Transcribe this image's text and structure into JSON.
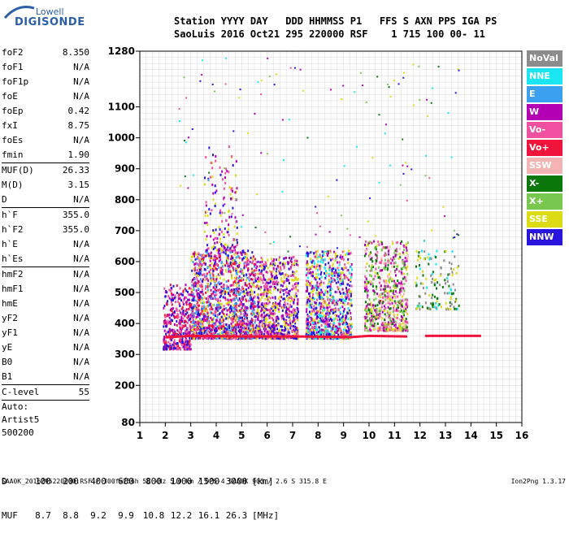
{
  "logo": {
    "line1": "Lowell",
    "line2": "DIGISONDE"
  },
  "header": {
    "line1": "Station YYYY DAY   DDD HHMMSS P1   FFS S AXN PPS IGA PS",
    "line2": "SaoLuis 2016 Oct21 295 220000 RSF    1 715 100 00- 11"
  },
  "params": [
    {
      "name": "foF2",
      "value": "8.350"
    },
    {
      "name": "foF1",
      "value": "N/A"
    },
    {
      "name": "foF1p",
      "value": "N/A"
    },
    {
      "name": "foE",
      "value": "N/A"
    },
    {
      "name": "foEp",
      "value": "0.42"
    },
    {
      "name": "fxI",
      "value": "8.75"
    },
    {
      "name": "foEs",
      "value": "N/A"
    },
    {
      "name": "fmin",
      "value": "1.90"
    },
    {
      "name": "MUF(D)",
      "value": "26.33"
    },
    {
      "name": "M(D)",
      "value": "3.15"
    },
    {
      "name": "D",
      "value": "N/A"
    },
    {
      "name": "h`F",
      "value": "355.0"
    },
    {
      "name": "h`F2",
      "value": "355.0"
    },
    {
      "name": "h`E",
      "value": "N/A"
    },
    {
      "name": "h`Es",
      "value": "N/A"
    },
    {
      "name": "hmF2",
      "value": "N/A"
    },
    {
      "name": "hmF1",
      "value": "N/A"
    },
    {
      "name": "hmE",
      "value": "N/A"
    },
    {
      "name": "yF2",
      "value": "N/A"
    },
    {
      "name": "yF1",
      "value": "N/A"
    },
    {
      "name": "yE",
      "value": "N/A"
    },
    {
      "name": "B0",
      "value": "N/A"
    },
    {
      "name": "B1",
      "value": "N/A"
    },
    {
      "name": "C-level",
      "value": "55"
    }
  ],
  "auto": {
    "label": "Auto:",
    "artist": "Artist5",
    "code": "500200"
  },
  "legend": [
    {
      "label": "NoVal",
      "color": "#8c8c8c"
    },
    {
      "label": "NNE",
      "color": "#19e6f0"
    },
    {
      "label": "E",
      "color": "#3ca0f0"
    },
    {
      "label": "W",
      "color": "#b400b4"
    },
    {
      "label": "Vo-",
      "color": "#f050a0"
    },
    {
      "label": "Vo+",
      "color": "#f0143c"
    },
    {
      "label": "SSW",
      "color": "#f5b4b4"
    },
    {
      "label": "X-",
      "color": "#0a780a"
    },
    {
      "label": "X+",
      "color": "#78c850"
    },
    {
      "label": "SSE",
      "color": "#dcdc14"
    },
    {
      "label": "NNW",
      "color": "#2814dc"
    }
  ],
  "chart_data": {
    "type": "scatter",
    "xlim": [
      1,
      16
    ],
    "ylim": [
      80,
      1280
    ],
    "x_ticks": [
      1,
      2,
      3,
      4,
      5,
      6,
      7,
      8,
      9,
      10,
      11,
      12,
      13,
      14,
      15,
      16
    ],
    "y_ticks": [
      80,
      200,
      300,
      400,
      500,
      600,
      700,
      800,
      900,
      1000,
      1100,
      1280
    ],
    "grid": true,
    "trace_regions": [
      {
        "fmin": 1.9,
        "fmax": 3.0,
        "hmin": 320,
        "hmax": 530,
        "density": 0.55,
        "colors": [
          "#2814dc",
          "#b400b4",
          "#f050a0",
          "#f0143c"
        ]
      },
      {
        "fmin": 3.0,
        "fmax": 5.5,
        "hmin": 355,
        "hmax": 640,
        "density": 0.7,
        "colors": [
          "#b400b4",
          "#2814dc",
          "#f050a0",
          "#dcdc14",
          "#f0143c",
          "#3ca0f0"
        ]
      },
      {
        "fmin": 5.5,
        "fmax": 7.2,
        "hmin": 355,
        "hmax": 620,
        "density": 0.6,
        "colors": [
          "#b400b4",
          "#2814dc",
          "#f050a0",
          "#dcdc14"
        ]
      },
      {
        "fmin": 7.5,
        "fmax": 9.3,
        "hmin": 355,
        "hmax": 640,
        "density": 0.6,
        "colors": [
          "#b400b4",
          "#2814dc",
          "#f050a0",
          "#dcdc14",
          "#19e6f0"
        ]
      },
      {
        "fmin": 9.8,
        "fmax": 11.5,
        "hmin": 380,
        "hmax": 670,
        "density": 0.45,
        "colors": [
          "#f050a0",
          "#b400b4",
          "#dcdc14",
          "#0a780a",
          "#78c850",
          "#f5b4b4"
        ]
      },
      {
        "fmin": 11.8,
        "fmax": 13.5,
        "hmin": 450,
        "hmax": 640,
        "density": 0.15,
        "colors": [
          "#dcdc14",
          "#19e6f0",
          "#0a780a",
          "#8c8c8c"
        ]
      },
      {
        "fmin": 3.5,
        "fmax": 4.8,
        "hmin": 640,
        "hmax": 980,
        "density": 0.12,
        "colors": [
          "#b400b4",
          "#dcdc14",
          "#2814dc",
          "#f050a0"
        ]
      }
    ],
    "trace_lines": [
      {
        "color": "#f0143c",
        "points": [
          [
            2.0,
            355
          ],
          [
            3.0,
            360
          ],
          [
            5.0,
            358
          ],
          [
            7.2,
            358
          ],
          [
            9.3,
            356
          ],
          [
            10.0,
            360
          ],
          [
            11.5,
            358
          ]
        ]
      },
      {
        "color": "#f0143c",
        "points": [
          [
            12.2,
            360
          ],
          [
            13.0,
            360
          ],
          [
            14.4,
            360
          ]
        ]
      }
    ],
    "layers": [
      {
        "label": "trace",
        "x_range": [
          1.9,
          14.4
        ],
        "y_range": [
          320,
          1280
        ]
      }
    ],
    "xlabel": "",
    "ylabel": ""
  },
  "bottom": {
    "d_label": "D",
    "d_values": [
      "100",
      "200",
      "400",
      "600",
      "800",
      "1000",
      "1500",
      "3000"
    ],
    "d_unit": "[km]",
    "muf_label": "MUF",
    "muf_values": [
      "8.7",
      "8.8",
      "9.2",
      "9.9",
      "10.8",
      "12.2",
      "16.1",
      "26.3"
    ],
    "muf_unit": "[MHz]"
  },
  "footer": {
    "text": "SAA0K_2016295220000.RSF / 300fx256h 50 kHz 5.0 km / DPS-4 SAA0K 903 / 2.6 S 315.8 E",
    "version": "Ion2Png 1.3.17"
  }
}
